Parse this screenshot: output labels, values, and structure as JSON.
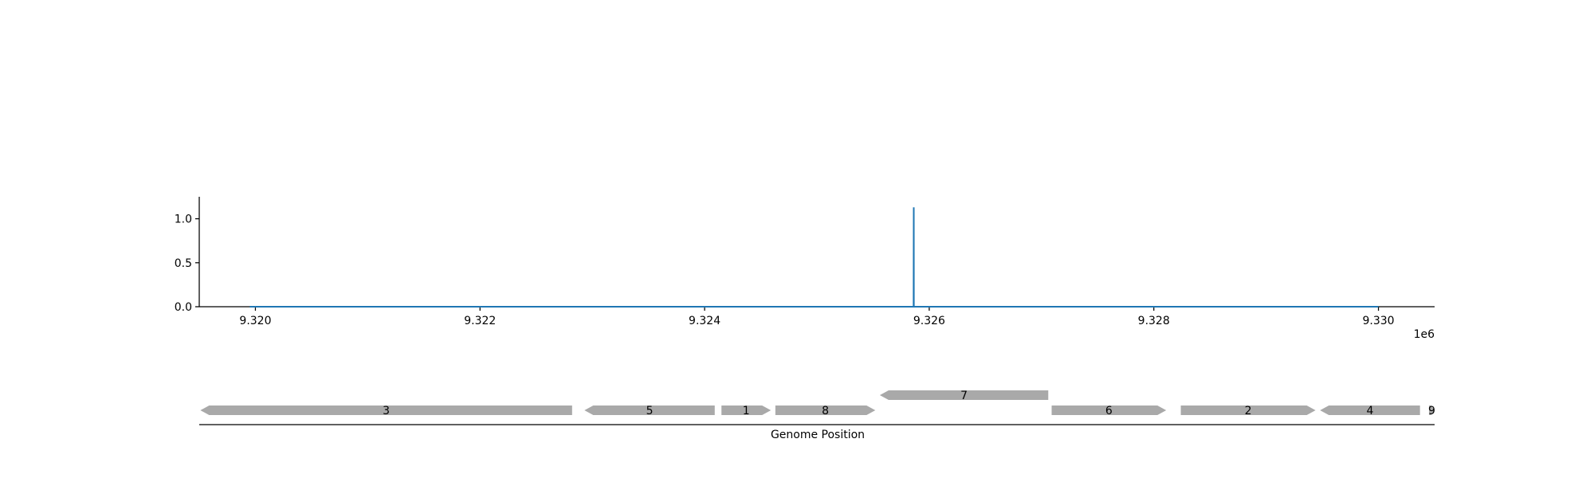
{
  "chart_data": [
    {
      "type": "line",
      "x": [
        9319950,
        9325861,
        9325862,
        9325863,
        9330000
      ],
      "y": [
        0,
        0,
        1.13,
        0,
        0
      ],
      "xlim": [
        9319500,
        9330500
      ],
      "ylim": [
        0,
        1.25
      ],
      "x_ticks": [
        9.32,
        9.322,
        9.324,
        9.326,
        9.328,
        9.33
      ],
      "x_tick_labels": [
        "9.320",
        "9.322",
        "9.324",
        "9.326",
        "9.328",
        "9.330"
      ],
      "x_offset_label": "1e6",
      "y_ticks": [
        0,
        0.5,
        1
      ],
      "y_tick_labels": [
        "0.0",
        "0.5",
        "1.0"
      ],
      "line_color": "#1f77b4",
      "grid": false
    },
    {
      "type": "gene-track",
      "xlabel": "Genome Position",
      "gene_color": "#a9a9a9",
      "genes": [
        {
          "label": "3",
          "start": 9319510,
          "end": 9322820,
          "strand": "-",
          "row": 0
        },
        {
          "label": "5",
          "start": 9322930,
          "end": 9324090,
          "strand": "-",
          "row": 0
        },
        {
          "label": "1",
          "start": 9324150,
          "end": 9324590,
          "strand": "+",
          "row": 0
        },
        {
          "label": "8",
          "start": 9324630,
          "end": 9325520,
          "strand": "+",
          "row": 0
        },
        {
          "label": "7",
          "start": 9325560,
          "end": 9327060,
          "strand": "-",
          "row": 1
        },
        {
          "label": "6",
          "start": 9327090,
          "end": 9328110,
          "strand": "+",
          "row": 0
        },
        {
          "label": "2",
          "start": 9328240,
          "end": 9329440,
          "strand": "+",
          "row": 0
        },
        {
          "label": "4",
          "start": 9329480,
          "end": 9330370,
          "strand": "-",
          "row": 0
        },
        {
          "label": "9",
          "start": 9330450,
          "end": 9330500,
          "strand": "+",
          "row": 0
        }
      ]
    }
  ]
}
